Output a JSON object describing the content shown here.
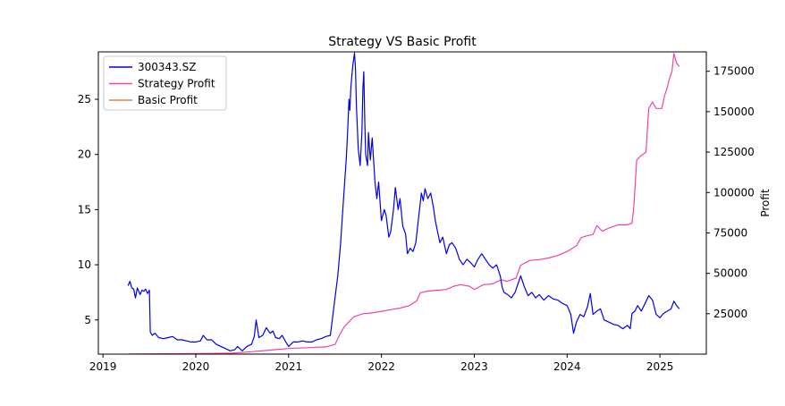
{
  "chart_data": {
    "type": "line",
    "title": "Strategy VS Basic Profit",
    "xlabel": "",
    "ylabel_left": "",
    "ylabel_right": "Profit",
    "x_ticks": [
      "2019",
      "2020",
      "2021",
      "2022",
      "2023",
      "2024",
      "2025"
    ],
    "y_left_ticks": [
      5,
      10,
      15,
      20,
      25
    ],
    "y_right_ticks": [
      "25000",
      "50000",
      "75000",
      "100000",
      "125000",
      "150000",
      "175000"
    ],
    "x_range": [
      2018.95,
      2025.5
    ],
    "y_left_range": [
      1.9,
      29.3
    ],
    "y_right_range": [
      0,
      187000
    ],
    "legend_position": "upper-left",
    "grid": false,
    "colors": {
      "price": "#0000ee",
      "strategy": "#ee44aa",
      "basic": "#dd8844"
    },
    "series": [
      {
        "name": "300343.SZ",
        "axis": "left",
        "points": [
          [
            2019.27,
            8.1
          ],
          [
            2019.29,
            8.5
          ],
          [
            2019.31,
            7.9
          ],
          [
            2019.33,
            7.8
          ],
          [
            2019.35,
            7.0
          ],
          [
            2019.37,
            7.9
          ],
          [
            2019.4,
            7.3
          ],
          [
            2019.42,
            7.7
          ],
          [
            2019.44,
            7.6
          ],
          [
            2019.46,
            7.8
          ],
          [
            2019.48,
            7.4
          ],
          [
            2019.5,
            7.7
          ],
          [
            2019.51,
            3.9
          ],
          [
            2019.53,
            3.6
          ],
          [
            2019.56,
            3.8
          ],
          [
            2019.6,
            3.4
          ],
          [
            2019.65,
            3.3
          ],
          [
            2019.7,
            3.4
          ],
          [
            2019.75,
            3.5
          ],
          [
            2019.8,
            3.2
          ],
          [
            2019.85,
            3.2
          ],
          [
            2019.9,
            3.1
          ],
          [
            2019.95,
            3.0
          ],
          [
            2020.0,
            3.0
          ],
          [
            2020.05,
            3.1
          ],
          [
            2020.08,
            3.6
          ],
          [
            2020.12,
            3.2
          ],
          [
            2020.17,
            3.2
          ],
          [
            2020.22,
            2.8
          ],
          [
            2020.27,
            2.6
          ],
          [
            2020.32,
            2.4
          ],
          [
            2020.37,
            2.2
          ],
          [
            2020.42,
            2.3
          ],
          [
            2020.45,
            2.6
          ],
          [
            2020.5,
            2.2
          ],
          [
            2020.55,
            2.6
          ],
          [
            2020.6,
            2.8
          ],
          [
            2020.63,
            3.5
          ],
          [
            2020.65,
            5.0
          ],
          [
            2020.68,
            3.4
          ],
          [
            2020.72,
            3.6
          ],
          [
            2020.76,
            4.3
          ],
          [
            2020.8,
            3.8
          ],
          [
            2020.83,
            4.0
          ],
          [
            2020.86,
            3.4
          ],
          [
            2020.9,
            3.3
          ],
          [
            2020.93,
            3.6
          ],
          [
            2020.97,
            3.0
          ],
          [
            2021.0,
            2.6
          ],
          [
            2021.05,
            3.0
          ],
          [
            2021.1,
            3.0
          ],
          [
            2021.15,
            3.1
          ],
          [
            2021.2,
            3.0
          ],
          [
            2021.25,
            3.0
          ],
          [
            2021.3,
            3.2
          ],
          [
            2021.35,
            3.3
          ],
          [
            2021.4,
            3.5
          ],
          [
            2021.45,
            3.6
          ],
          [
            2021.5,
            7.0
          ],
          [
            2021.53,
            9.0
          ],
          [
            2021.56,
            12.0
          ],
          [
            2021.58,
            14.5
          ],
          [
            2021.6,
            17.0
          ],
          [
            2021.62,
            19.5
          ],
          [
            2021.63,
            21.0
          ],
          [
            2021.64,
            23.0
          ],
          [
            2021.65,
            25.0
          ],
          [
            2021.66,
            24.0
          ],
          [
            2021.67,
            26.0
          ],
          [
            2021.68,
            27.0
          ],
          [
            2021.69,
            28.0
          ],
          [
            2021.7,
            28.6
          ],
          [
            2021.71,
            29.2
          ],
          [
            2021.72,
            27.8
          ],
          [
            2021.73,
            24.5
          ],
          [
            2021.75,
            20.5
          ],
          [
            2021.77,
            19.0
          ],
          [
            2021.79,
            22.0
          ],
          [
            2021.8,
            26.0
          ],
          [
            2021.81,
            27.5
          ],
          [
            2021.82,
            23.0
          ],
          [
            2021.83,
            20.0
          ],
          [
            2021.85,
            19.0
          ],
          [
            2021.86,
            22.0
          ],
          [
            2021.88,
            19.5
          ],
          [
            2021.9,
            21.5
          ],
          [
            2021.93,
            17.5
          ],
          [
            2021.95,
            16.0
          ],
          [
            2021.97,
            17.5
          ],
          [
            2022.0,
            14.0
          ],
          [
            2022.03,
            15.0
          ],
          [
            2022.05,
            14.5
          ],
          [
            2022.08,
            12.5
          ],
          [
            2022.1,
            13.0
          ],
          [
            2022.13,
            15.0
          ],
          [
            2022.15,
            17.0
          ],
          [
            2022.18,
            15.0
          ],
          [
            2022.2,
            16.0
          ],
          [
            2022.23,
            13.5
          ],
          [
            2022.26,
            12.8
          ],
          [
            2022.28,
            11.0
          ],
          [
            2022.31,
            11.5
          ],
          [
            2022.34,
            11.2
          ],
          [
            2022.37,
            12.0
          ],
          [
            2022.39,
            13.5
          ],
          [
            2022.41,
            15.0
          ],
          [
            2022.43,
            16.5
          ],
          [
            2022.45,
            15.8
          ],
          [
            2022.47,
            16.9
          ],
          [
            2022.5,
            16.0
          ],
          [
            2022.53,
            16.5
          ],
          [
            2022.56,
            15.2
          ],
          [
            2022.58,
            14.0
          ],
          [
            2022.6,
            13.2
          ],
          [
            2022.63,
            12.0
          ],
          [
            2022.66,
            12.5
          ],
          [
            2022.7,
            11.0
          ],
          [
            2022.73,
            11.8
          ],
          [
            2022.76,
            12.0
          ],
          [
            2022.8,
            11.5
          ],
          [
            2022.84,
            10.5
          ],
          [
            2022.88,
            10.0
          ],
          [
            2022.92,
            10.5
          ],
          [
            2022.96,
            10.2
          ],
          [
            2023.0,
            9.8
          ],
          [
            2023.04,
            10.5
          ],
          [
            2023.08,
            11.0
          ],
          [
            2023.12,
            10.5
          ],
          [
            2023.16,
            10.0
          ],
          [
            2023.2,
            9.7
          ],
          [
            2023.24,
            10.0
          ],
          [
            2023.28,
            9.0
          ],
          [
            2023.3,
            8.0
          ],
          [
            2023.32,
            7.5
          ],
          [
            2023.36,
            7.3
          ],
          [
            2023.4,
            7.0
          ],
          [
            2023.44,
            7.5
          ],
          [
            2023.48,
            8.5
          ],
          [
            2023.5,
            9.0
          ],
          [
            2023.54,
            8.0
          ],
          [
            2023.58,
            7.2
          ],
          [
            2023.62,
            7.5
          ],
          [
            2023.66,
            7.0
          ],
          [
            2023.7,
            7.3
          ],
          [
            2023.75,
            6.8
          ],
          [
            2023.8,
            7.2
          ],
          [
            2023.85,
            6.9
          ],
          [
            2023.9,
            6.8
          ],
          [
            2023.95,
            6.5
          ],
          [
            2024.0,
            6.3
          ],
          [
            2024.04,
            5.5
          ],
          [
            2024.07,
            3.8
          ],
          [
            2024.1,
            4.8
          ],
          [
            2024.14,
            5.5
          ],
          [
            2024.18,
            5.3
          ],
          [
            2024.22,
            6.2
          ],
          [
            2024.25,
            7.4
          ],
          [
            2024.28,
            5.5
          ],
          [
            2024.32,
            5.8
          ],
          [
            2024.36,
            6.0
          ],
          [
            2024.4,
            5.0
          ],
          [
            2024.45,
            4.8
          ],
          [
            2024.5,
            4.6
          ],
          [
            2024.55,
            4.5
          ],
          [
            2024.6,
            4.2
          ],
          [
            2024.65,
            4.5
          ],
          [
            2024.68,
            4.2
          ],
          [
            2024.7,
            5.6
          ],
          [
            2024.73,
            5.8
          ],
          [
            2024.76,
            6.3
          ],
          [
            2024.8,
            5.8
          ],
          [
            2024.84,
            6.5
          ],
          [
            2024.88,
            7.2
          ],
          [
            2024.92,
            6.8
          ],
          [
            2024.96,
            5.5
          ],
          [
            2025.0,
            5.2
          ],
          [
            2025.04,
            5.6
          ],
          [
            2025.08,
            5.8
          ],
          [
            2025.12,
            6.0
          ],
          [
            2025.15,
            6.7
          ],
          [
            2025.18,
            6.3
          ],
          [
            2025.21,
            6.0
          ]
        ]
      },
      {
        "name": "Strategy Profit",
        "axis": "right",
        "points": [
          [
            2019.27,
            0
          ],
          [
            2019.6,
            200
          ],
          [
            2020.0,
            400
          ],
          [
            2020.4,
            600
          ],
          [
            2020.6,
            1500
          ],
          [
            2020.8,
            2500
          ],
          [
            2021.0,
            3500
          ],
          [
            2021.2,
            4000
          ],
          [
            2021.4,
            4500
          ],
          [
            2021.5,
            6000
          ],
          [
            2021.55,
            12000
          ],
          [
            2021.6,
            17000
          ],
          [
            2021.65,
            20000
          ],
          [
            2021.7,
            23000
          ],
          [
            2021.75,
            24000
          ],
          [
            2021.8,
            25000
          ],
          [
            2021.9,
            25500
          ],
          [
            2022.0,
            26500
          ],
          [
            2022.1,
            27500
          ],
          [
            2022.2,
            28500
          ],
          [
            2022.3,
            30000
          ],
          [
            2022.38,
            33000
          ],
          [
            2022.42,
            38000
          ],
          [
            2022.5,
            39000
          ],
          [
            2022.6,
            39500
          ],
          [
            2022.7,
            40000
          ],
          [
            2022.78,
            42000
          ],
          [
            2022.85,
            43000
          ],
          [
            2022.95,
            42000
          ],
          [
            2023.0,
            40000
          ],
          [
            2023.05,
            41500
          ],
          [
            2023.1,
            43000
          ],
          [
            2023.2,
            43500
          ],
          [
            2023.25,
            45000
          ],
          [
            2023.3,
            46000
          ],
          [
            2023.35,
            45000
          ],
          [
            2023.45,
            47000
          ],
          [
            2023.5,
            55000
          ],
          [
            2023.6,
            58000
          ],
          [
            2023.7,
            58500
          ],
          [
            2023.8,
            59500
          ],
          [
            2023.9,
            61000
          ],
          [
            2024.0,
            63500
          ],
          [
            2024.1,
            67000
          ],
          [
            2024.15,
            72000
          ],
          [
            2024.2,
            73000
          ],
          [
            2024.28,
            74000
          ],
          [
            2024.32,
            79500
          ],
          [
            2024.38,
            76000
          ],
          [
            2024.45,
            78000
          ],
          [
            2024.55,
            80000
          ],
          [
            2024.65,
            80000
          ],
          [
            2024.7,
            81000
          ],
          [
            2024.72,
            92000
          ],
          [
            2024.75,
            120000
          ],
          [
            2024.8,
            123000
          ],
          [
            2024.85,
            125000
          ],
          [
            2024.88,
            152000
          ],
          [
            2024.92,
            156000
          ],
          [
            2024.96,
            152000
          ],
          [
            2025.02,
            152000
          ],
          [
            2025.05,
            160000
          ],
          [
            2025.08,
            165000
          ],
          [
            2025.1,
            170000
          ],
          [
            2025.13,
            175000
          ],
          [
            2025.15,
            186000
          ],
          [
            2025.18,
            180000
          ],
          [
            2025.21,
            178000
          ]
        ]
      },
      {
        "name": "Basic Profit",
        "axis": "right",
        "points": [
          [
            2019.27,
            0
          ],
          [
            2025.21,
            0
          ]
        ]
      }
    ]
  }
}
